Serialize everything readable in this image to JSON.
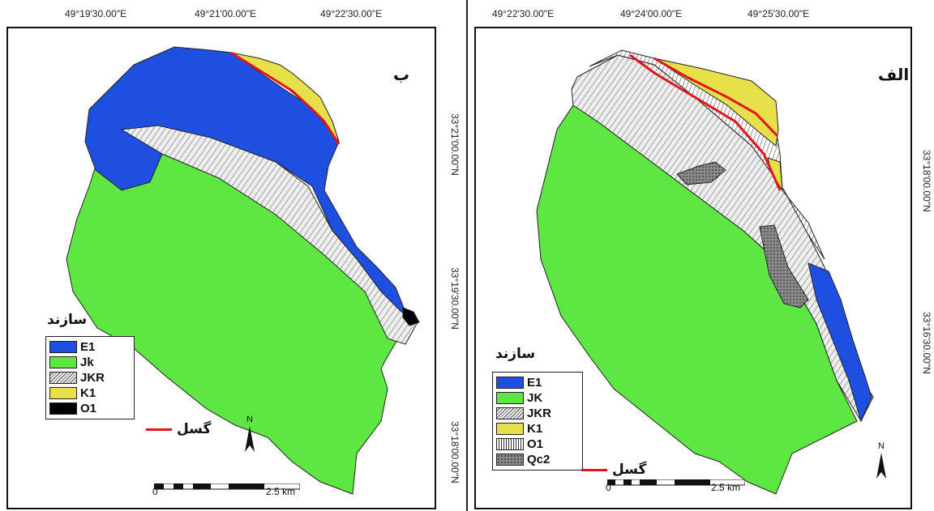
{
  "panel_b": {
    "letter": "ب",
    "top_coords": [
      "49°19'30.00\"E",
      "49°21'00.00\"E",
      "49°22'30.00\"E"
    ],
    "side_coords": [
      "33°21'00.00\"N",
      "33°19'30.00\"N",
      "33°18'00.00\"N"
    ],
    "legend_title": "سازند",
    "legend": [
      {
        "label": "E1",
        "color": "#1f4fe0",
        "pattern": "solid"
      },
      {
        "label": "Jk",
        "color": "#5ee642",
        "pattern": "solid"
      },
      {
        "label": "JKR",
        "color": "#e8e8e8",
        "pattern": "diagonal"
      },
      {
        "label": "K1",
        "color": "#e8e04a",
        "pattern": "solid"
      },
      {
        "label": "O1",
        "color": "#000000",
        "pattern": "solid"
      }
    ],
    "fault_label": "گسل",
    "north_label": "N",
    "scale_start": "0",
    "scale_end": "2.5 km"
  },
  "panel_a": {
    "letter": "الف",
    "top_coords": [
      "49°22'30.00\"E",
      "49°24'00.00\"E",
      "49°25'30.00\"E"
    ],
    "side_coords": [
      "33°18'00.00\"N",
      "33°16'30.00\"N"
    ],
    "legend_title": "سازند",
    "legend": [
      {
        "label": "E1",
        "color": "#1f4fe0",
        "pattern": "solid"
      },
      {
        "label": "JK",
        "color": "#5ee642",
        "pattern": "solid"
      },
      {
        "label": "JKR",
        "color": "#e8e8e8",
        "pattern": "diagonal"
      },
      {
        "label": "K1",
        "color": "#e8e04a",
        "pattern": "solid"
      },
      {
        "label": "O1",
        "color": "#ffffff",
        "pattern": "vertical"
      },
      {
        "label": "Qc2",
        "color": "#7a7a7a",
        "pattern": "dots"
      }
    ],
    "fault_label": "گسل",
    "north_label": "N",
    "scale_start": "0",
    "scale_end": "2.5 km"
  },
  "colors": {
    "E1": "#1f4fe0",
    "Jk": "#5ee642",
    "K1": "#e8e04a",
    "fault": "#e0161a"
  }
}
